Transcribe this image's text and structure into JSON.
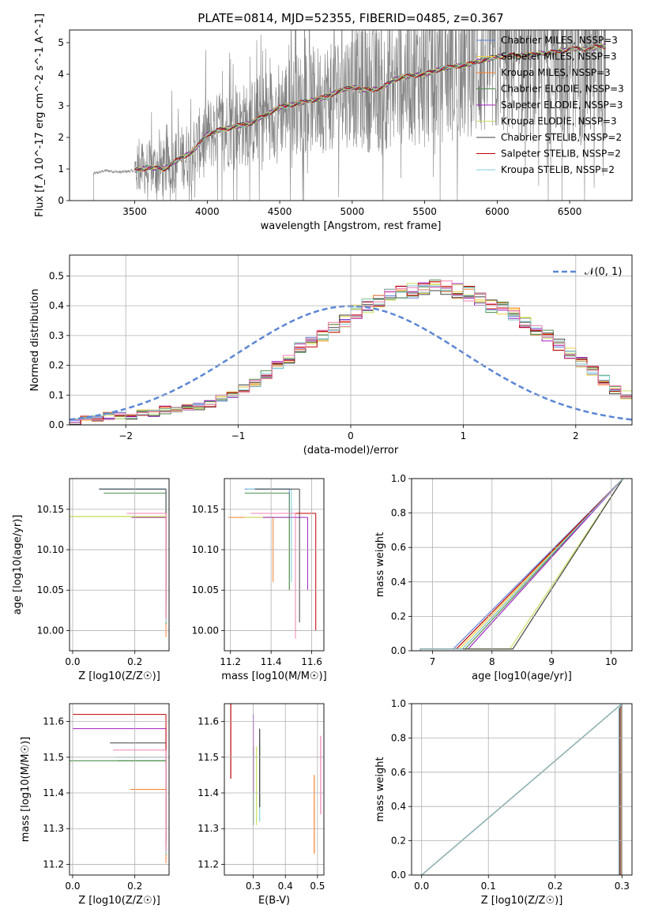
{
  "figure_title": "PLATE=0814, MJD=52355, FIBERID=0485, z=0.367",
  "colors": {
    "grid": "#b0b0b0",
    "data": "#808080",
    "normal_curve": "#5b86d6"
  },
  "models": [
    {
      "label": "Chabrier MILES, N<sub>SSP</sub>=3",
      "text": "Chabrier MILES, NSSP=3",
      "color": "#5b7fd6"
    },
    {
      "label": "Salpeter MILES",
      "text": "Salpeter MILES, NSSP=3",
      "color": "#f0d040"
    },
    {
      "label": "Kroupa MILES",
      "text": "Kroupa MILES, NSSP=3",
      "color": "#ff7f2a"
    },
    {
      "label": "Chabrier ELODIE",
      "text": "Chabrier ELODIE, NSSP=3",
      "color": "#4f8f4f"
    },
    {
      "label": "Salpeter ELODIE",
      "text": "Salpeter ELODIE, NSSP=3",
      "color": "#a020c0"
    },
    {
      "label": "Kroupa ELODIE",
      "text": "Kroupa ELODIE, NSSP=3",
      "color": "#c8e060"
    },
    {
      "label": "Chabrier STELIB",
      "text": "Chabrier STELIB, NSSP=2",
      "color": "#404040"
    },
    {
      "label": "Salpeter STELIB",
      "text": "Salpeter STELIB, NSSP=2",
      "color": "#c00000"
    },
    {
      "label": "Kroupa STELIB",
      "text": "Kroupa STELIB, NSSP=2",
      "color": "#80d0d8"
    }
  ],
  "chart_data": [
    {
      "id": "spectrum",
      "type": "line",
      "xlabel": "wavelength [Angstrom, rest frame]",
      "ylabel": "Flux [f_λ 10^-17 erg cm^-2 s^-1 A^-1]",
      "xlim": [
        3050,
        6930
      ],
      "ylim": [
        0,
        5.4
      ],
      "xticks": [
        3500,
        4000,
        4500,
        5000,
        5500,
        6000,
        6500
      ],
      "yticks": [
        0,
        1,
        2,
        3,
        4,
        5
      ],
      "grid": false,
      "legend": "upper-right",
      "continuum": {
        "x": [
          3215,
          3300,
          3400,
          3500,
          3600,
          3700,
          3800,
          3900,
          4000,
          4100,
          4200,
          4300,
          4400,
          4500,
          4600,
          4700,
          4800,
          4900,
          5000,
          5100,
          5200,
          5300,
          5400,
          5500,
          5600,
          5700,
          5800,
          5900,
          6000,
          6100,
          6200,
          6300,
          6400,
          6500,
          6600,
          6750
        ],
        "y": [
          0.85,
          0.95,
          0.9,
          0.95,
          1.05,
          1.0,
          1.3,
          1.55,
          2.1,
          2.25,
          2.35,
          2.45,
          2.7,
          2.95,
          3.05,
          3.15,
          3.25,
          3.45,
          3.6,
          3.5,
          3.55,
          3.85,
          3.95,
          4.0,
          4.15,
          4.25,
          4.3,
          4.45,
          4.55,
          4.6,
          4.6,
          4.65,
          4.7,
          4.8,
          4.8,
          4.9
        ]
      }
    },
    {
      "id": "residuals",
      "type": "bar",
      "xlabel": "(data-model)/error",
      "ylabel": "Normed distribution",
      "xlim": [
        -2.5,
        2.5
      ],
      "ylim": [
        0,
        0.57
      ],
      "xticks": [
        -2,
        -1,
        0,
        1,
        2
      ],
      "yticks": [
        0.0,
        0.1,
        0.2,
        0.3,
        0.4,
        0.5
      ],
      "grid": true,
      "legend": "upper-right",
      "legend_label": "𝒩(0, 1)",
      "bin_width": 0.1,
      "bin_start": -2.5,
      "hist": [
        0.01,
        0.02,
        0.02,
        0.03,
        0.03,
        0.03,
        0.04,
        0.04,
        0.05,
        0.05,
        0.06,
        0.06,
        0.07,
        0.09,
        0.1,
        0.12,
        0.14,
        0.17,
        0.2,
        0.22,
        0.26,
        0.28,
        0.3,
        0.33,
        0.35,
        0.38,
        0.4,
        0.42,
        0.44,
        0.45,
        0.45,
        0.46,
        0.47,
        0.46,
        0.45,
        0.44,
        0.42,
        0.4,
        0.39,
        0.37,
        0.34,
        0.32,
        0.3,
        0.27,
        0.24,
        0.21,
        0.18,
        0.15,
        0.12,
        0.1
      ]
    },
    {
      "id": "age-vs-Z",
      "type": "line",
      "xlabel": "Z [log10(Z/Z☉)]",
      "ylabel": "age [log10(age/yr)]",
      "xlim": [
        -0.01,
        0.31
      ],
      "ylim": [
        9.975,
        10.188
      ],
      "xticks": [
        0.0,
        0.2
      ],
      "yticks": [
        10.0,
        10.05,
        10.1,
        10.15
      ],
      "grid": true
    },
    {
      "id": "age-vs-mass",
      "type": "line",
      "xlabel": "mass [log10(M/M☉)]",
      "ylabel": "",
      "xlim": [
        11.17,
        11.66
      ],
      "ylim": [
        9.975,
        10.188
      ],
      "xticks": [
        11.2,
        11.4,
        11.6
      ],
      "yticks": [
        10.0,
        10.05,
        10.1,
        10.15
      ],
      "grid": true
    },
    {
      "id": "massweight-vs-age",
      "type": "line",
      "xlabel": "age [log10(age/yr)]",
      "ylabel": "mass weight",
      "xlim": [
        6.65,
        10.35
      ],
      "ylim": [
        0,
        1.0
      ],
      "xticks": [
        7,
        8,
        9,
        10
      ],
      "yticks": [
        0.0,
        0.2,
        0.4,
        0.6,
        0.8,
        1.0
      ],
      "grid": true
    },
    {
      "id": "mass-vs-Z",
      "type": "line",
      "xlabel": "Z [log10(Z/Z☉)]",
      "ylabel": "mass [log10(M/M☉)]",
      "xlim": [
        -0.01,
        0.31
      ],
      "ylim": [
        11.17,
        11.65
      ],
      "xticks": [
        0.0,
        0.2
      ],
      "yticks": [
        11.2,
        11.3,
        11.4,
        11.5,
        11.6
      ],
      "grid": true
    },
    {
      "id": "mass-vs-EBV",
      "type": "line",
      "xlabel": "E(B-V)",
      "ylabel": "",
      "xlim": [
        0.21,
        0.52
      ],
      "ylim": [
        11.17,
        11.65
      ],
      "xticks": [
        0.3,
        0.4,
        0.5
      ],
      "yticks": [
        11.2,
        11.3,
        11.4,
        11.5,
        11.6
      ],
      "grid": true
    },
    {
      "id": "massweight-vs-Z",
      "type": "line",
      "xlabel": "Z [log10(Z/Z☉)]",
      "ylabel": "mass weight",
      "xlim": [
        -0.015,
        0.315
      ],
      "ylim": [
        0,
        1.0
      ],
      "xticks": [
        0.0,
        0.1,
        0.2,
        0.3
      ],
      "yticks": [
        0.0,
        0.2,
        0.4,
        0.6,
        0.8,
        1.0
      ],
      "grid": true
    }
  ],
  "fits": [
    {
      "Z": 0.3,
      "age": 10.175,
      "mass": 11.49,
      "ebv": 0.3,
      "color": "#5b7fd6"
    },
    {
      "Z": 0.3,
      "age": 10.14,
      "mass": 11.41,
      "ebv": 0.49,
      "color": "#ff7f2a"
    },
    {
      "Z": 0.3,
      "age": 10.14,
      "mass": 11.49,
      "ebv": 0.31,
      "color": "#c8e060"
    },
    {
      "Z": 0.3,
      "age": 10.17,
      "mass": 11.49,
      "ebv": 0.3,
      "color": "#4f8f4f"
    },
    {
      "Z": 0.3,
      "age": 10.14,
      "mass": 11.58,
      "ebv": 0.3,
      "color": "#a020c0"
    },
    {
      "Z": 0.3,
      "age": 10.175,
      "mass": 11.5,
      "ebv": 0.32,
      "color": "#80d0d8"
    },
    {
      "Z": 0.3,
      "age": 10.175,
      "mass": 11.54,
      "ebv": 0.32,
      "color": "#404040"
    },
    {
      "Z": 0.3,
      "age": 10.145,
      "mass": 11.62,
      "ebv": 0.23,
      "color": "#c00000"
    },
    {
      "Z": 0.3,
      "age": 10.145,
      "mass": 11.52,
      "ebv": 0.51,
      "color": "#f080b0"
    }
  ]
}
